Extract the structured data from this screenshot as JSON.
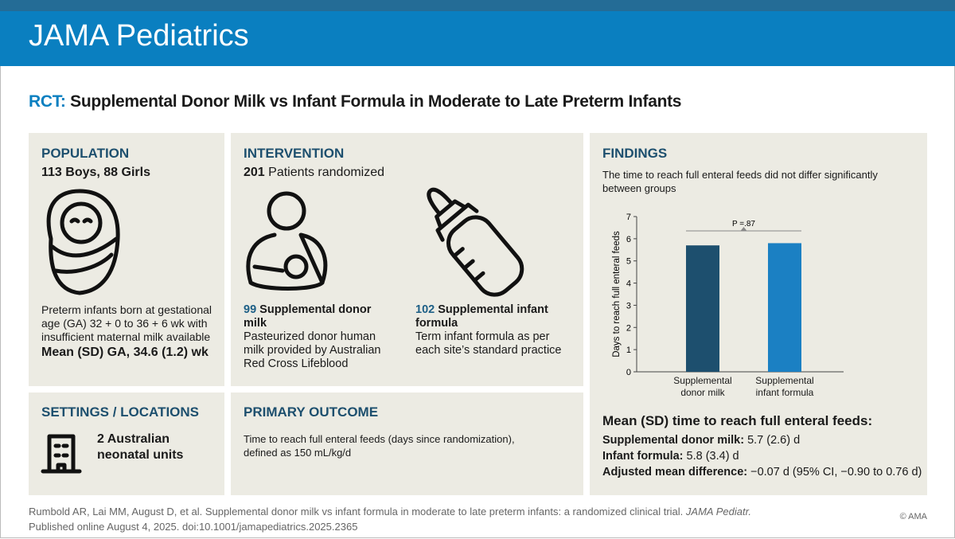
{
  "header": {
    "title": "JAMA Pediatrics"
  },
  "headline": {
    "label": "RCT:",
    "title": "Supplemental Donor Milk vs Infant Formula in Moderate to Late Preterm Infants"
  },
  "population": {
    "heading": "POPULATION",
    "summary": "113 Boys, 88 Girls",
    "description": "Preterm infants born at gestational age (GA) 32 + 0 to 36 + 6 wk with insufficient maternal milk available",
    "mean": "Mean (SD) GA, 34.6 (1.2) wk"
  },
  "intervention": {
    "heading": "INTERVENTION",
    "count": "201",
    "count_text": "Patients randomized",
    "groups": [
      {
        "count": "99",
        "name": "Supplemental donor milk",
        "description": "Pasteurized donor human milk provided by Australian Red Cross Lifeblood"
      },
      {
        "count": "102",
        "name": "Supplemental infant formula",
        "description": "Term infant formula as per each site’s standard practice"
      }
    ]
  },
  "settings": {
    "heading": "SETTINGS / LOCATIONS",
    "text": "2 Australian neonatal units"
  },
  "primary_outcome": {
    "heading": "PRIMARY OUTCOME",
    "text": "Time to reach full enteral feeds (days since randomization), defined as 150 mL/kg/d"
  },
  "findings": {
    "heading": "FINDINGS",
    "text": "The time to reach full enteral feeds did not differ significantly between groups",
    "summary_title": "Mean (SD) time to reach full enteral feeds:",
    "summary": [
      {
        "label": "Supplemental donor milk:",
        "value": "5.7 (2.6) d"
      },
      {
        "label": "Infant formula:",
        "value": "5.8 (3.4) d"
      },
      {
        "label": "Adjusted mean difference:",
        "value": "−0.07 d (95% CI, −0.90 to 0.76 d)"
      }
    ]
  },
  "chart_data": {
    "type": "bar",
    "ylabel": "Days to reach full enteral feeds",
    "categories": [
      "Supplemental donor milk",
      "Supplemental infant formula"
    ],
    "values": [
      5.7,
      5.8
    ],
    "colors": [
      "#1d4f6e",
      "#1b80c3"
    ],
    "ylim": [
      0,
      7
    ],
    "yticks": [
      0,
      1,
      2,
      3,
      4,
      5,
      6,
      7
    ],
    "annotation": "P =.87"
  },
  "footer": {
    "citation": "Rumbold AR, Lai MM, August D, et al. Supplemental donor milk vs infant formula in moderate to late preterm infants: a randomized clinical trial.",
    "journal": "JAMA Pediatr.",
    "citation_line2": "Published online August 4, 2025. doi:10.1001/jamapediatrics.2025.2365",
    "copyright": "© AMA"
  }
}
